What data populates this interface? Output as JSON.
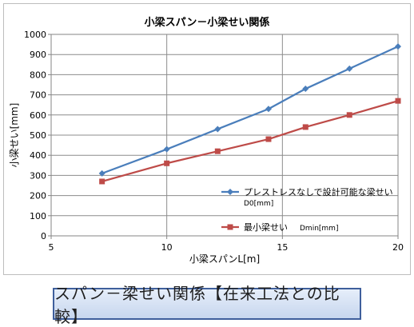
{
  "caption": "スパン－梁せい関係【在来工法との比較】",
  "chart_data": {
    "type": "line",
    "title": "小梁スパン－小梁せい関係",
    "xlabel": "小梁スパンL[m]",
    "ylabel": "小梁せい[mm]",
    "xlim": [
      5,
      20
    ],
    "ylim": [
      0,
      1000
    ],
    "xticks": [
      "5",
      "10",
      "15",
      "20"
    ],
    "yticks": [
      "0",
      "100",
      "200",
      "300",
      "400",
      "500",
      "600",
      "700",
      "800",
      "900",
      "1000"
    ],
    "grid": true,
    "legend_position": "right",
    "series": [
      {
        "name": "プレストレスなしで設計可能な梁せい",
        "name_line2": "D0[mm]",
        "color": "#4a7ebb",
        "marker": "diamond",
        "x": [
          7.2,
          10,
          12.2,
          14.4,
          16,
          17.9,
          20
        ],
        "y": [
          310,
          430,
          530,
          630,
          730,
          830,
          940
        ]
      },
      {
        "name": "最小梁せい",
        "name_line2": "Dmin[mm]",
        "color": "#be4b48",
        "marker": "square",
        "x": [
          7.2,
          10,
          12.2,
          14.4,
          16,
          17.9,
          20
        ],
        "y": [
          270,
          360,
          420,
          480,
          540,
          600,
          670
        ]
      }
    ]
  }
}
